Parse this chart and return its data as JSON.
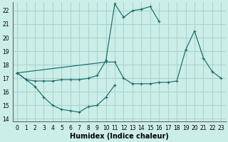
{
  "title": "",
  "xlabel": "Humidex (Indice chaleur)",
  "bg_color": "#cceee8",
  "grid_color": "#aad4cc",
  "line_color": "#1a6b6b",
  "xlim": [
    -0.5,
    23.5
  ],
  "ylim": [
    13.8,
    22.6
  ],
  "xticks": [
    0,
    1,
    2,
    3,
    4,
    5,
    6,
    7,
    8,
    9,
    10,
    11,
    12,
    13,
    14,
    15,
    16,
    17,
    18,
    19,
    20,
    21,
    22,
    23
  ],
  "yticks": [
    14,
    15,
    16,
    17,
    18,
    19,
    20,
    21,
    22
  ],
  "line1_x": [
    0,
    1,
    2,
    3,
    4,
    5,
    6,
    7,
    8,
    9,
    10,
    11
  ],
  "line1_y": [
    17.4,
    16.9,
    16.4,
    15.6,
    15.0,
    14.7,
    14.6,
    14.5,
    14.9,
    15.0,
    15.6,
    16.5
  ],
  "line2_x": [
    0,
    1,
    2,
    3,
    4,
    5,
    6,
    7,
    8,
    9,
    10,
    11,
    12,
    13,
    14,
    15,
    16
  ],
  "line2_y": [
    17.4,
    16.9,
    16.8,
    16.8,
    16.8,
    16.9,
    16.9,
    16.9,
    17.0,
    17.2,
    18.3,
    22.5,
    21.5,
    22.0,
    22.1,
    22.3,
    21.2
  ],
  "line3_x": [
    0,
    10,
    11,
    12,
    13,
    14,
    15,
    16,
    17,
    18,
    19,
    20,
    21,
    22,
    23
  ],
  "line3_y": [
    17.4,
    18.2,
    18.2,
    17.0,
    16.6,
    16.6,
    16.6,
    16.7,
    16.7,
    16.8,
    19.1,
    20.5,
    18.5,
    17.5,
    17.0
  ]
}
